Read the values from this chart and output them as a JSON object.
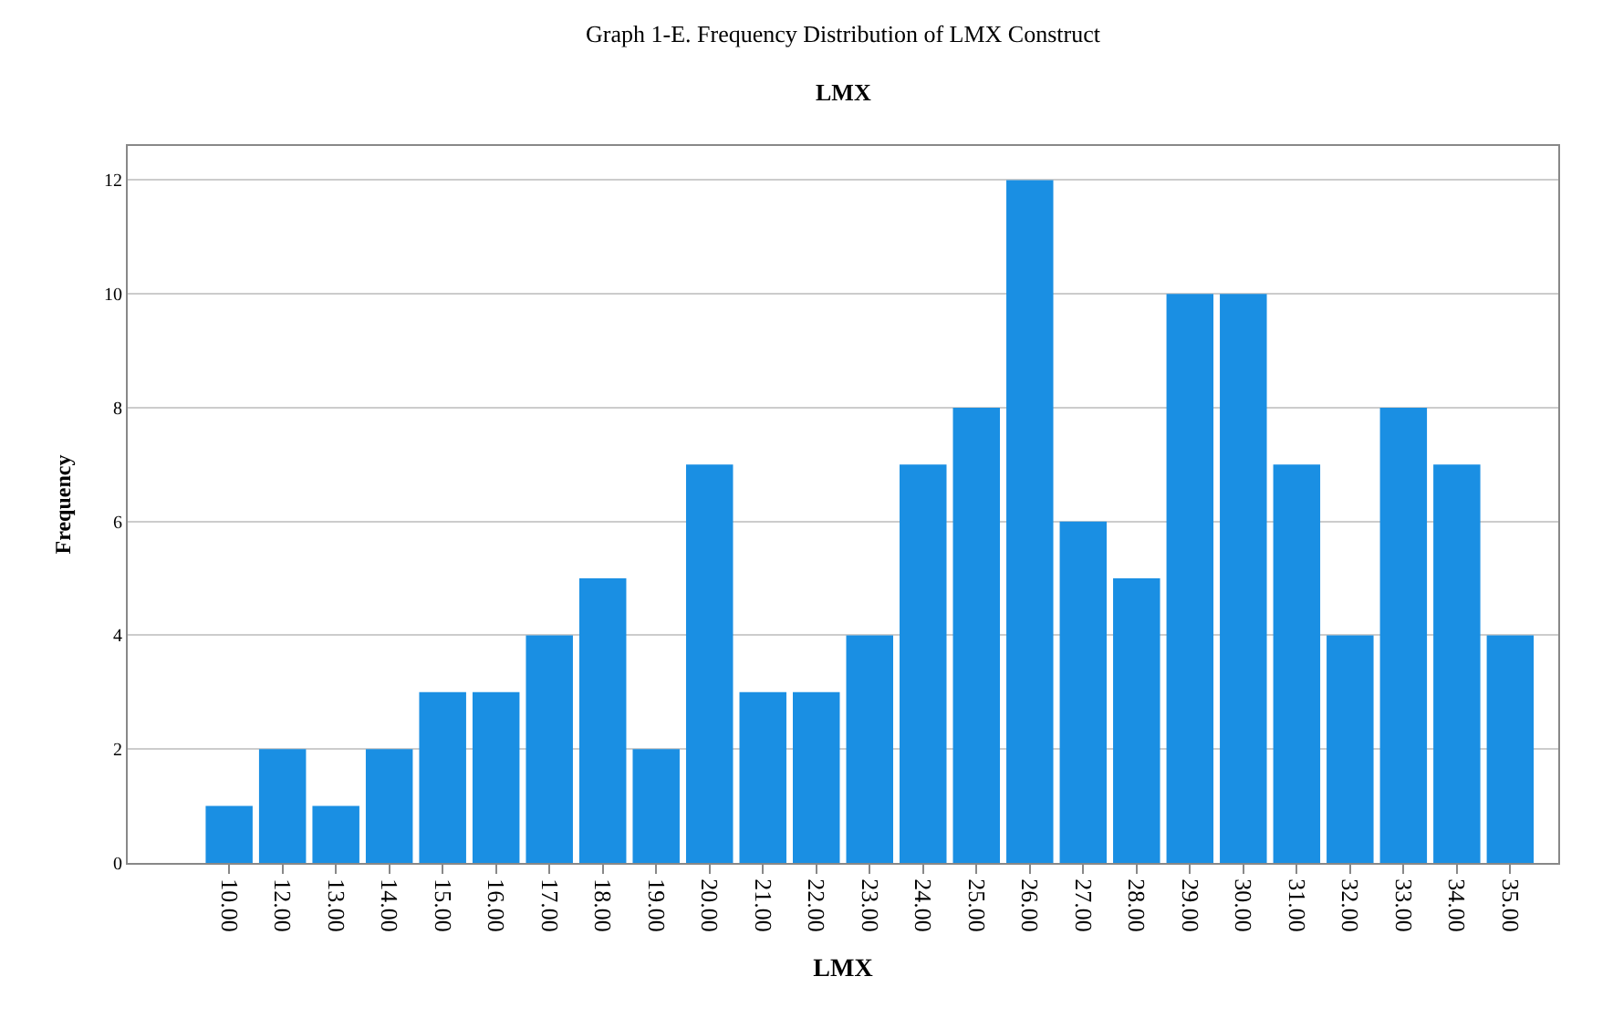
{
  "chart_data": {
    "type": "bar",
    "title": "Graph 1-E. Frequency Distribution of LMX Construct",
    "subtitle": "LMX",
    "xlabel": "LMX",
    "ylabel": "Frequency",
    "categories": [
      "10.00",
      "12.00",
      "13.00",
      "14.00",
      "15.00",
      "16.00",
      "17.00",
      "18.00",
      "19.00",
      "20.00",
      "21.00",
      "22.00",
      "23.00",
      "24.00",
      "25.00",
      "26.00",
      "27.00",
      "28.00",
      "29.00",
      "30.00",
      "31.00",
      "32.00",
      "33.00",
      "34.00",
      "35.00"
    ],
    "values": [
      1,
      2,
      1,
      2,
      3,
      3,
      4,
      5,
      2,
      7,
      3,
      3,
      4,
      7,
      8,
      12,
      6,
      5,
      10,
      10,
      7,
      4,
      8,
      7,
      4
    ],
    "color": "#1a8fe3",
    "ylim": [
      0,
      12.6
    ],
    "yticks": [
      0,
      2,
      4,
      6,
      8,
      10,
      12
    ],
    "grid": "y"
  }
}
